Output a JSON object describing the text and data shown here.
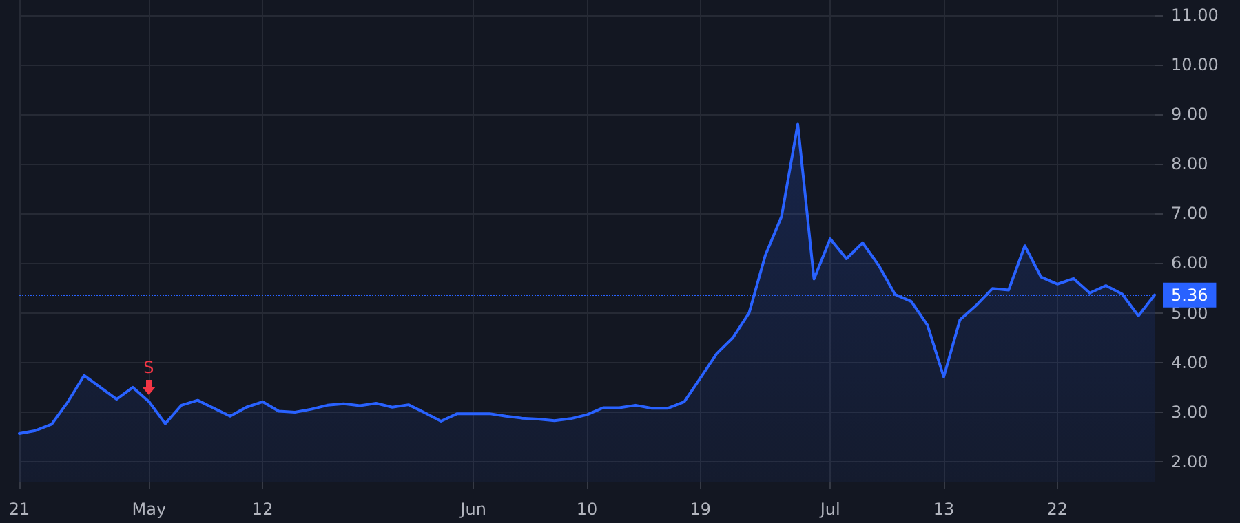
{
  "chart_data": {
    "type": "area",
    "categories": [
      "21",
      null,
      null,
      null,
      null,
      null,
      null,
      null,
      "May",
      null,
      null,
      null,
      null,
      null,
      null,
      "12",
      null,
      null,
      null,
      null,
      null,
      null,
      null,
      null,
      null,
      null,
      null,
      null,
      "Jun",
      null,
      null,
      null,
      null,
      null,
      null,
      "10",
      null,
      null,
      null,
      null,
      null,
      null,
      "19",
      null,
      null,
      null,
      null,
      null,
      null,
      null,
      "Jul",
      null,
      null,
      null,
      null,
      null,
      null,
      "13",
      null,
      null,
      null,
      null,
      null,
      null,
      "22",
      null,
      null,
      null,
      null,
      null,
      null
    ],
    "series": [
      {
        "color": "#2962ff",
        "values": [
          2.57,
          2.63,
          2.76,
          3.21,
          3.74,
          3.5,
          3.26,
          3.5,
          3.21,
          2.77,
          3.14,
          3.24,
          3.08,
          2.92,
          3.1,
          3.21,
          3.02,
          3.0,
          3.06,
          3.14,
          3.17,
          3.13,
          3.18,
          3.1,
          3.15,
          2.99,
          2.82,
          2.97,
          2.97,
          2.97,
          2.92,
          2.88,
          2.86,
          2.83,
          2.87,
          2.95,
          3.09,
          3.09,
          3.14,
          3.08,
          3.08,
          3.21,
          3.69,
          4.18,
          4.5,
          5.0,
          6.16,
          6.94,
          8.8,
          5.68,
          6.49,
          6.09,
          6.41,
          5.95,
          5.37,
          5.23,
          4.75,
          3.71,
          4.86,
          5.15,
          5.49,
          5.46,
          6.35,
          5.72,
          5.58,
          5.69,
          5.4,
          5.55,
          5.38,
          4.94,
          5.36
        ]
      }
    ],
    "ylim": [
      1.6,
      11.3
    ],
    "yticks": [
      {
        "value": 2,
        "label": "2.00"
      },
      {
        "value": 3,
        "label": "3.00"
      },
      {
        "value": 4,
        "label": "4.00"
      },
      {
        "value": 5,
        "label": "5.00"
      },
      {
        "value": 6,
        "label": "6.00"
      },
      {
        "value": 7,
        "label": "7.00"
      },
      {
        "value": 8,
        "label": "8.00"
      },
      {
        "value": 9,
        "label": "9.00"
      },
      {
        "value": 10,
        "label": "10.00"
      },
      {
        "value": 11,
        "label": "11.00"
      }
    ],
    "ref_lines": [
      {
        "axis": "y",
        "value": 5.36,
        "label": "5.36",
        "color": "#2962ff",
        "line_style": "dotted"
      }
    ],
    "annotations": [
      {
        "text": "S",
        "x": "May",
        "y": 3.21
      }
    ],
    "grid": true,
    "marker": "none",
    "line_style": "solid"
  }
}
